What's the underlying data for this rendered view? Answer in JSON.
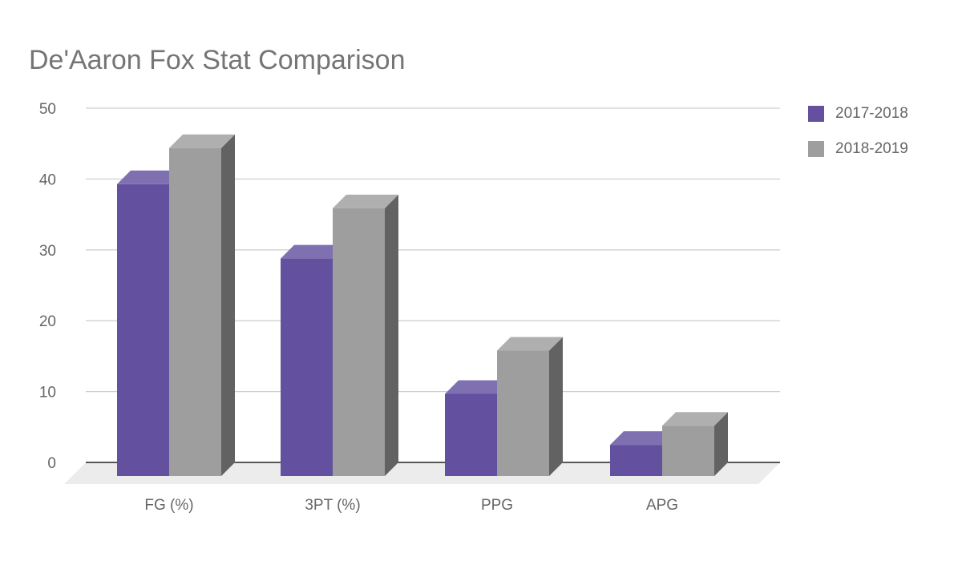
{
  "chart_data": {
    "type": "bar",
    "title": "De'Aaron Fox Stat Comparison",
    "categories": [
      "FG (%)",
      "3PT (%)",
      "PPG",
      "APG"
    ],
    "series": [
      {
        "name": "2017-2018",
        "values": [
          41.2,
          30.7,
          11.6,
          4.4
        ],
        "color": "#6351a0"
      },
      {
        "name": "2018-2019",
        "values": [
          46.3,
          37.8,
          17.7,
          7.1
        ],
        "color": "#9e9e9e"
      }
    ],
    "ylim": [
      0,
      50
    ],
    "yticks": [
      "0",
      "10",
      "20",
      "30",
      "40",
      "50"
    ],
    "grid": true,
    "legend": "right",
    "three_d": true
  }
}
